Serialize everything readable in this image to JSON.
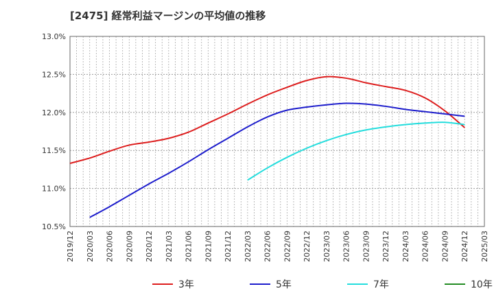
{
  "chart_data": {
    "type": "line",
    "title": "[2475]  経常利益マージンの平均値の推移",
    "xlabel": "",
    "ylabel": "",
    "ylim": [
      10.5,
      13.0
    ],
    "yticks": [
      "10.5%",
      "11.0%",
      "11.5%",
      "12.0%",
      "12.5%",
      "13.0%"
    ],
    "ytick_values": [
      10.5,
      11.0,
      11.5,
      12.0,
      12.5,
      13.0
    ],
    "xticks": [
      "2019/12",
      "2020/03",
      "2020/06",
      "2020/09",
      "2020/12",
      "2021/03",
      "2021/06",
      "2021/09",
      "2021/12",
      "2022/03",
      "2022/06",
      "2022/09",
      "2022/12",
      "2023/03",
      "2023/06",
      "2023/09",
      "2023/12",
      "2024/03",
      "2024/06",
      "2024/09",
      "2024/12",
      "2025/03"
    ],
    "grid": true,
    "legend_position": "bottom",
    "series": [
      {
        "name": "3年",
        "color": "#dd1c1c",
        "points": [
          [
            "2019/12",
            11.33
          ],
          [
            "2020/03",
            11.4
          ],
          [
            "2020/06",
            11.49
          ],
          [
            "2020/09",
            11.57
          ],
          [
            "2020/12",
            11.61
          ],
          [
            "2021/03",
            11.66
          ],
          [
            "2021/06",
            11.74
          ],
          [
            "2021/09",
            11.86
          ],
          [
            "2021/12",
            11.98
          ],
          [
            "2022/03",
            12.11
          ],
          [
            "2022/06",
            12.23
          ],
          [
            "2022/09",
            12.33
          ],
          [
            "2022/12",
            12.42
          ],
          [
            "2023/03",
            12.47
          ],
          [
            "2023/06",
            12.45
          ],
          [
            "2023/09",
            12.39
          ],
          [
            "2023/12",
            12.34
          ],
          [
            "2024/03",
            12.29
          ],
          [
            "2024/06",
            12.19
          ],
          [
            "2024/09",
            12.02
          ],
          [
            "2024/12",
            11.8
          ]
        ]
      },
      {
        "name": "5年",
        "color": "#1c1ccc",
        "points": [
          [
            "2020/03",
            10.62
          ],
          [
            "2020/06",
            10.76
          ],
          [
            "2020/09",
            10.91
          ],
          [
            "2020/12",
            11.06
          ],
          [
            "2021/03",
            11.2
          ],
          [
            "2021/06",
            11.35
          ],
          [
            "2021/09",
            11.51
          ],
          [
            "2021/12",
            11.66
          ],
          [
            "2022/03",
            11.81
          ],
          [
            "2022/06",
            11.94
          ],
          [
            "2022/09",
            12.03
          ],
          [
            "2022/12",
            12.07
          ],
          [
            "2023/03",
            12.1
          ],
          [
            "2023/06",
            12.12
          ],
          [
            "2023/09",
            12.11
          ],
          [
            "2023/12",
            12.08
          ],
          [
            "2024/03",
            12.04
          ],
          [
            "2024/06",
            12.01
          ],
          [
            "2024/09",
            11.98
          ],
          [
            "2024/12",
            11.95
          ]
        ]
      },
      {
        "name": "7年",
        "color": "#22dddd",
        "points": [
          [
            "2022/03",
            11.11
          ],
          [
            "2022/06",
            11.27
          ],
          [
            "2022/09",
            11.41
          ],
          [
            "2022/12",
            11.53
          ],
          [
            "2023/03",
            11.63
          ],
          [
            "2023/06",
            11.71
          ],
          [
            "2023/09",
            11.77
          ],
          [
            "2023/12",
            11.81
          ],
          [
            "2024/03",
            11.84
          ],
          [
            "2024/06",
            11.86
          ],
          [
            "2024/09",
            11.87
          ],
          [
            "2024/12",
            11.84
          ]
        ]
      },
      {
        "name": "10年",
        "color": "#228b22",
        "points": []
      }
    ]
  }
}
